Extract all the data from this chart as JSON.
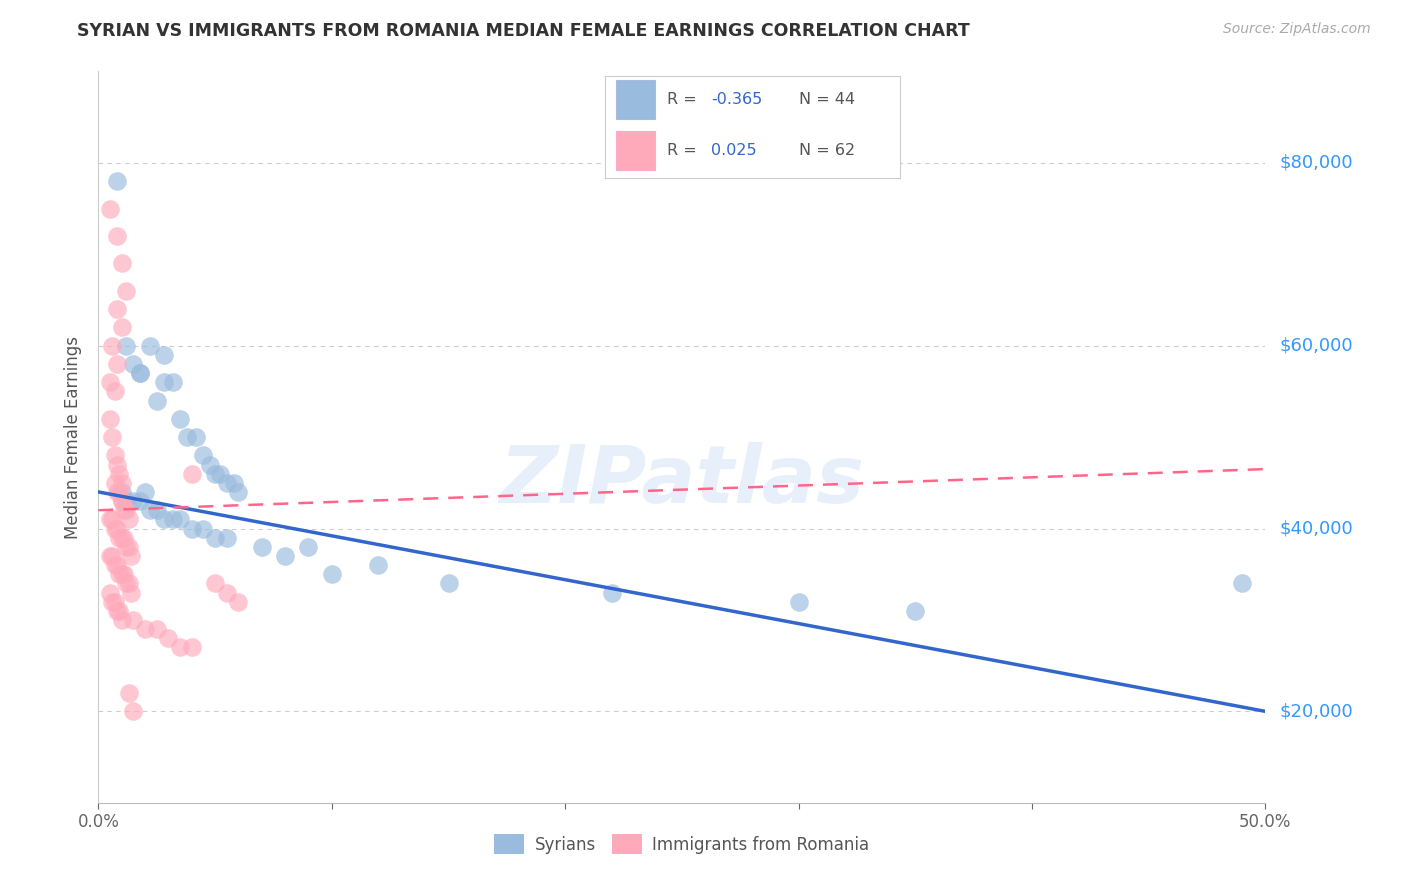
{
  "title": "SYRIAN VS IMMIGRANTS FROM ROMANIA MEDIAN FEMALE EARNINGS CORRELATION CHART",
  "source": "Source: ZipAtlas.com",
  "ylabel": "Median Female Earnings",
  "xlim": [
    0.0,
    0.5
  ],
  "ylim": [
    10000,
    90000
  ],
  "yticks": [
    20000,
    40000,
    60000,
    80000
  ],
  "ytick_labels": [
    "$20,000",
    "$40,000",
    "$60,000",
    "$80,000"
  ],
  "xtick_positions": [
    0.0,
    0.1,
    0.2,
    0.3,
    0.4,
    0.5
  ],
  "xtick_labels": [
    "0.0%",
    "",
    "",
    "",
    "",
    "50.0%"
  ],
  "blue_color": "#99BBDD",
  "pink_color": "#FFAABB",
  "blue_line_color": "#3366CC",
  "pink_line_color": "#FF6688",
  "watermark_text": "ZIPatlas",
  "blue_line_x0": 0.0,
  "blue_line_y0": 44000,
  "blue_line_x1": 0.5,
  "blue_line_y1": 20000,
  "pink_line_x0": 0.0,
  "pink_line_y0": 42000,
  "pink_line_x1": 0.5,
  "pink_line_y1": 46500,
  "blue_scatter": [
    [
      0.008,
      78000
    ],
    [
      0.012,
      60000
    ],
    [
      0.018,
      57000
    ],
    [
      0.022,
      60000
    ],
    [
      0.028,
      59000
    ],
    [
      0.032,
      56000
    ],
    [
      0.015,
      58000
    ],
    [
      0.018,
      57000
    ],
    [
      0.025,
      54000
    ],
    [
      0.028,
      56000
    ],
    [
      0.035,
      52000
    ],
    [
      0.038,
      50000
    ],
    [
      0.042,
      50000
    ],
    [
      0.045,
      48000
    ],
    [
      0.048,
      47000
    ],
    [
      0.05,
      46000
    ],
    [
      0.052,
      46000
    ],
    [
      0.055,
      45000
    ],
    [
      0.058,
      45000
    ],
    [
      0.06,
      44000
    ],
    [
      0.01,
      44000
    ],
    [
      0.012,
      43000
    ],
    [
      0.015,
      43000
    ],
    [
      0.018,
      43000
    ],
    [
      0.02,
      44000
    ],
    [
      0.022,
      42000
    ],
    [
      0.025,
      42000
    ],
    [
      0.028,
      41000
    ],
    [
      0.032,
      41000
    ],
    [
      0.035,
      41000
    ],
    [
      0.04,
      40000
    ],
    [
      0.045,
      40000
    ],
    [
      0.05,
      39000
    ],
    [
      0.055,
      39000
    ],
    [
      0.07,
      38000
    ],
    [
      0.08,
      37000
    ],
    [
      0.09,
      38000
    ],
    [
      0.1,
      35000
    ],
    [
      0.12,
      36000
    ],
    [
      0.15,
      34000
    ],
    [
      0.22,
      33000
    ],
    [
      0.3,
      32000
    ],
    [
      0.35,
      31000
    ],
    [
      0.49,
      34000
    ]
  ],
  "pink_scatter": [
    [
      0.005,
      75000
    ],
    [
      0.008,
      72000
    ],
    [
      0.01,
      69000
    ],
    [
      0.012,
      66000
    ],
    [
      0.008,
      64000
    ],
    [
      0.01,
      62000
    ],
    [
      0.006,
      60000
    ],
    [
      0.008,
      58000
    ],
    [
      0.005,
      56000
    ],
    [
      0.007,
      55000
    ],
    [
      0.005,
      52000
    ],
    [
      0.006,
      50000
    ],
    [
      0.007,
      48000
    ],
    [
      0.008,
      47000
    ],
    [
      0.009,
      46000
    ],
    [
      0.01,
      45000
    ],
    [
      0.007,
      45000
    ],
    [
      0.008,
      44000
    ],
    [
      0.009,
      44000
    ],
    [
      0.01,
      43000
    ],
    [
      0.01,
      43000
    ],
    [
      0.011,
      42000
    ],
    [
      0.012,
      42000
    ],
    [
      0.013,
      41000
    ],
    [
      0.005,
      41000
    ],
    [
      0.006,
      41000
    ],
    [
      0.007,
      40000
    ],
    [
      0.008,
      40000
    ],
    [
      0.009,
      39000
    ],
    [
      0.01,
      39000
    ],
    [
      0.011,
      39000
    ],
    [
      0.012,
      38000
    ],
    [
      0.013,
      38000
    ],
    [
      0.014,
      37000
    ],
    [
      0.005,
      37000
    ],
    [
      0.006,
      37000
    ],
    [
      0.007,
      36000
    ],
    [
      0.008,
      36000
    ],
    [
      0.009,
      35000
    ],
    [
      0.01,
      35000
    ],
    [
      0.011,
      35000
    ],
    [
      0.012,
      34000
    ],
    [
      0.013,
      34000
    ],
    [
      0.014,
      33000
    ],
    [
      0.005,
      33000
    ],
    [
      0.006,
      32000
    ],
    [
      0.007,
      32000
    ],
    [
      0.008,
      31000
    ],
    [
      0.009,
      31000
    ],
    [
      0.01,
      30000
    ],
    [
      0.015,
      30000
    ],
    [
      0.02,
      29000
    ],
    [
      0.025,
      29000
    ],
    [
      0.03,
      28000
    ],
    [
      0.035,
      27000
    ],
    [
      0.04,
      27000
    ],
    [
      0.04,
      46000
    ],
    [
      0.05,
      34000
    ],
    [
      0.055,
      33000
    ],
    [
      0.06,
      32000
    ],
    [
      0.013,
      22000
    ],
    [
      0.015,
      20000
    ]
  ]
}
